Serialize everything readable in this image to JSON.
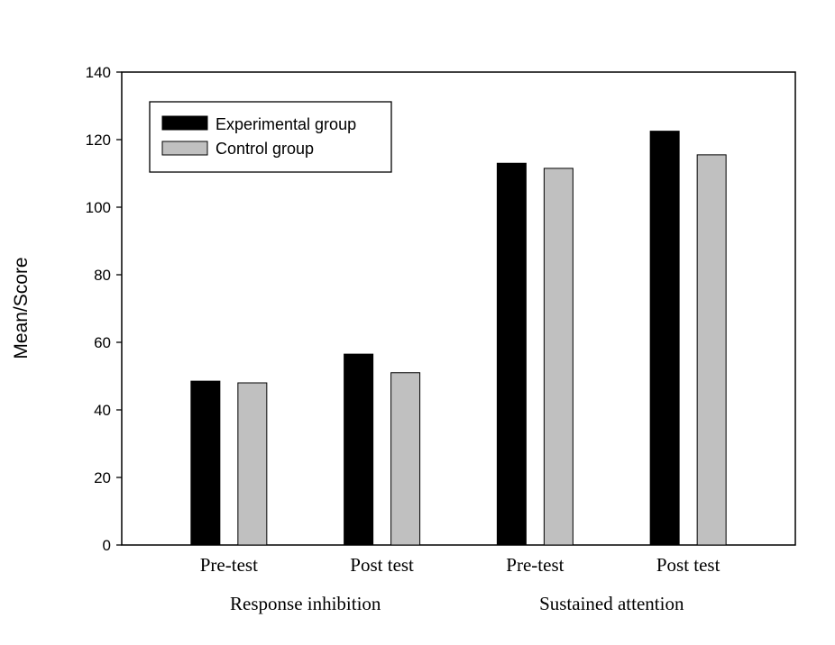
{
  "chart_data": {
    "type": "bar",
    "title": "",
    "xlabel": "",
    "ylabel": "Mean/Score",
    "ylim": [
      0,
      140
    ],
    "yticks": [
      0,
      20,
      40,
      60,
      80,
      100,
      120,
      140
    ],
    "categories": [
      "Pre-test",
      "Post test",
      "Pre-test",
      "Post test"
    ],
    "category_groups": [
      {
        "label": "Response inhibition",
        "categories": [
          0,
          1
        ]
      },
      {
        "label": "Sustained attention",
        "categories": [
          2,
          3
        ]
      }
    ],
    "series": [
      {
        "name": "Experimental group",
        "color": "#000000",
        "values": [
          48.5,
          56.5,
          113,
          122.5
        ]
      },
      {
        "name": "Control group",
        "color": "#c0c0c0",
        "values": [
          48,
          51,
          111.5,
          115.5
        ]
      }
    ],
    "grid": false,
    "legend": {
      "position": "top-left"
    }
  }
}
